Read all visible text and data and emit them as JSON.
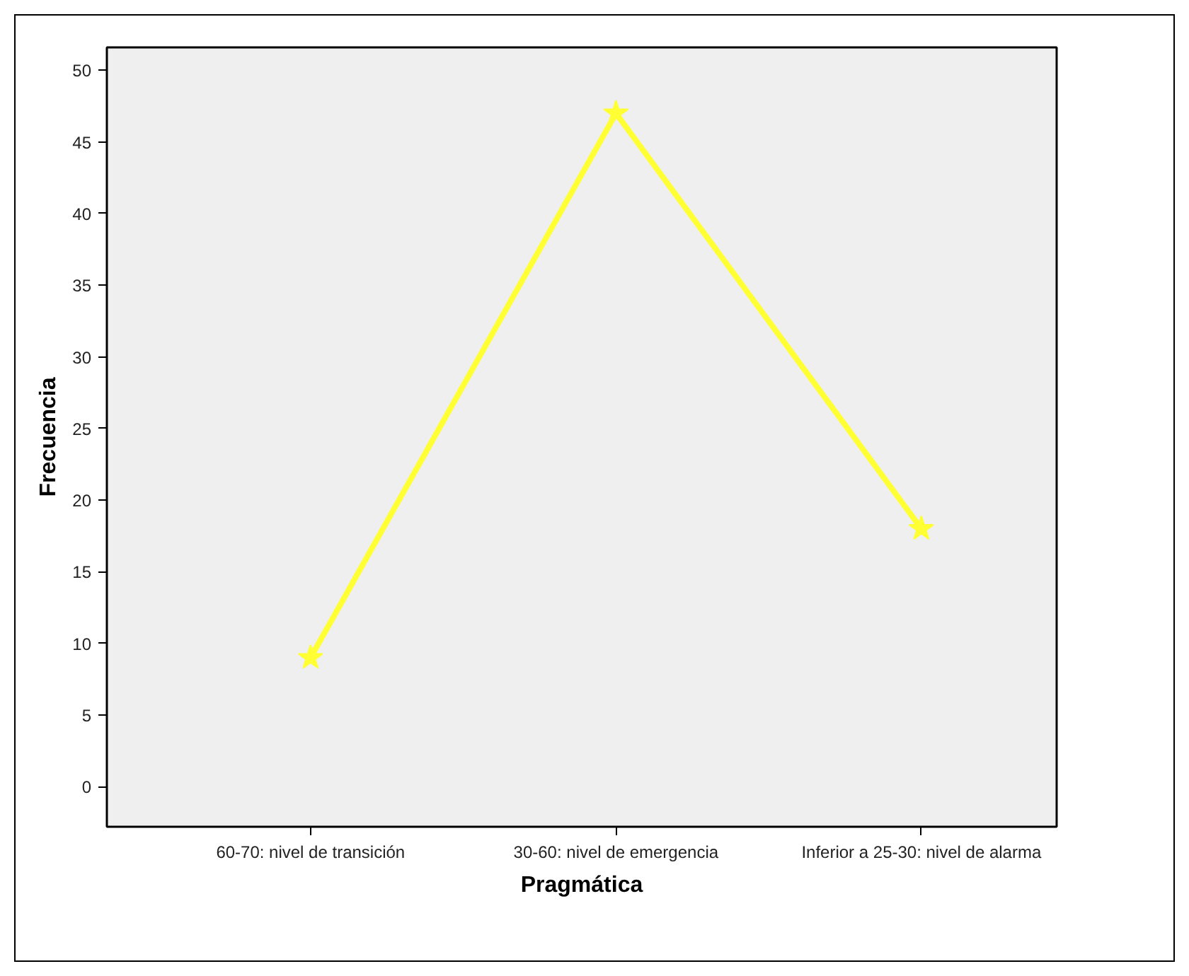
{
  "chart_data": {
    "type": "line",
    "xlabel": "Pragmática",
    "ylabel": "Frecuencia",
    "categories": [
      "60-70: nivel de transición",
      "30-60: nivel de emergencia",
      "Inferior a 25-30: nivel de alarma"
    ],
    "series": [
      {
        "color": "#ffff33",
        "values": [
          9,
          47,
          18
        ]
      }
    ],
    "ylim": [
      -2.8,
      51.6
    ],
    "yticks": [
      0,
      5,
      10,
      15,
      20,
      25,
      30,
      35,
      40,
      45,
      50
    ],
    "marker": "star",
    "line_style": "solid",
    "grid": false
  }
}
